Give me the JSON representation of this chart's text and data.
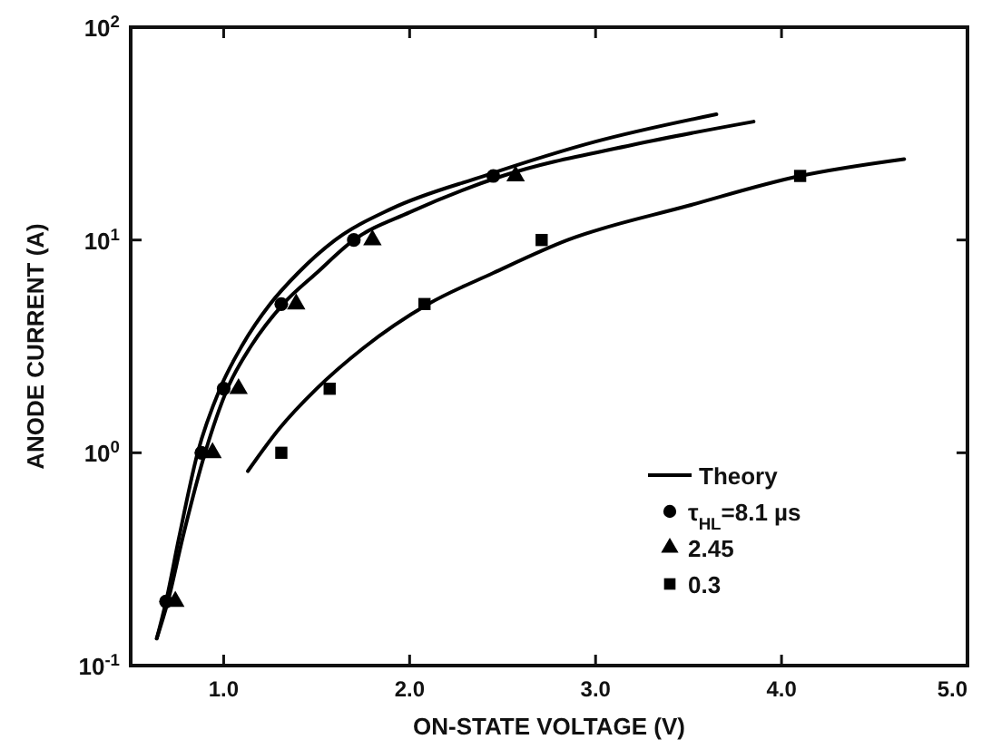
{
  "chart_data": {
    "type": "scatter",
    "xlabel": "ON-STATE VOLTAGE (V)",
    "ylabel": "ANODE CURRENT (A)",
    "xlim": [
      0.5,
      5.0
    ],
    "xticks": [
      {
        "value": 1,
        "label": "1.0"
      },
      {
        "value": 2,
        "label": "2.0"
      },
      {
        "value": 3,
        "label": "3.0"
      },
      {
        "value": 4,
        "label": "4.0"
      },
      {
        "value": 5,
        "label": "5.0"
      }
    ],
    "ylim": [
      0.1,
      100
    ],
    "yticks": [
      {
        "value": 0.1,
        "label": "10$^{-1}$"
      },
      {
        "value": 1,
        "label": "10$^{0}$"
      },
      {
        "value": 10,
        "label": "10$^{1}$"
      },
      {
        "value": 100,
        "label": "10$^{2}$"
      }
    ],
    "log": "y",
    "grid": false,
    "legend": "bottom right",
    "series": [
      {
        "name": "Theory",
        "type": "line",
        "color": "#000000",
        "marker": "none",
        "line_style": "solid",
        "x": [
          0.64,
          0.69,
          0.76,
          0.86,
          0.98,
          1.1,
          1.25,
          1.4,
          1.6,
          1.9,
          2.4,
          3.0,
          3.65
        ],
        "values": [
          0.134,
          0.2,
          0.4,
          1,
          2,
          3.2,
          5,
          7,
          10,
          14,
          20,
          29,
          39
        ]
      },
      {
        "type": "line",
        "color": "#000000",
        "marker": "none",
        "line_style": "solid",
        "x": [
          0.64,
          0.7,
          0.78,
          0.9,
          1.02,
          1.15,
          1.32,
          1.5,
          1.7,
          2.0,
          2.5,
          3.2,
          3.85
        ],
        "values": [
          0.134,
          0.2,
          0.4,
          1,
          2,
          3.2,
          5,
          7,
          10,
          13.5,
          20,
          28,
          36
        ]
      },
      {
        "type": "line",
        "color": "#000000",
        "marker": "none",
        "line_style": "solid",
        "x": [
          1.13,
          1.3,
          1.5,
          1.75,
          2.1,
          2.45,
          2.85,
          3.5,
          4.1,
          4.66
        ],
        "values": [
          0.82,
          1.3,
          2,
          3.1,
          5,
          7,
          10,
          14.5,
          20,
          24
        ]
      },
      {
        "name": "τ$_{HL}$=8.1 µs",
        "type": "scatter",
        "color": "#000000",
        "marker": "circle",
        "x": [
          0.69,
          0.88,
          1.0,
          1.31,
          1.7,
          2.45
        ],
        "values": [
          0.2,
          1,
          2,
          5,
          10,
          20
        ]
      },
      {
        "name": "2.45",
        "type": "scatter",
        "color": "#000000",
        "marker": "triangle",
        "x": [
          0.74,
          0.94,
          1.08,
          1.39,
          1.8,
          2.57
        ],
        "values": [
          0.2,
          1,
          2,
          5,
          10,
          20
        ]
      },
      {
        "name": "0.3",
        "type": "scatter",
        "color": "#000000",
        "marker": "square",
        "x": [
          1.31,
          1.57,
          2.08,
          2.71,
          4.1
        ],
        "values": [
          1,
          2,
          5,
          10,
          20
        ]
      }
    ]
  }
}
